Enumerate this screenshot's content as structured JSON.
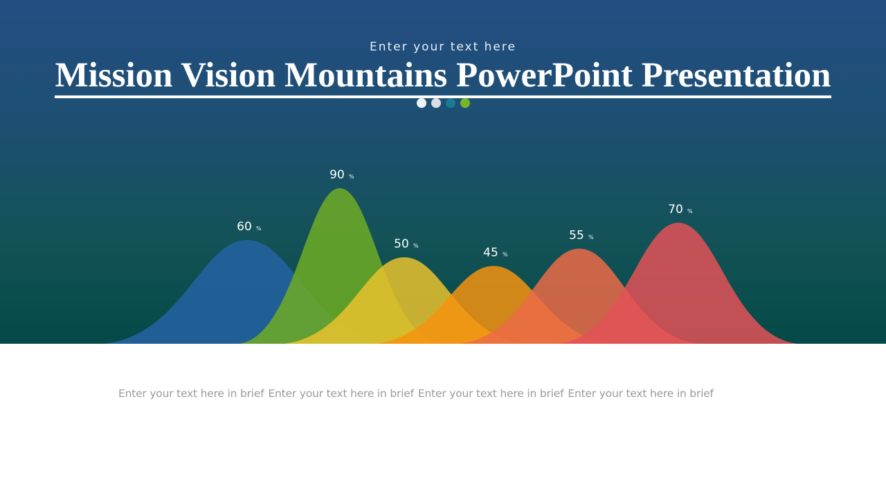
{
  "header": {
    "subtitle": "Enter your text here",
    "title": "Mission Vision Mountains PowerPoint Presentation"
  },
  "indicator_dots": [
    {
      "color": "#eef2f7"
    },
    {
      "color": "#dcdde3"
    },
    {
      "color": "#1a7b93"
    },
    {
      "color": "#76b72a"
    }
  ],
  "chart_data": {
    "type": "area",
    "unit": "%",
    "series": [
      {
        "value": 60,
        "label": "60",
        "color": "#2563a2"
      },
      {
        "value": 90,
        "label": "90",
        "color": "#6fab24"
      },
      {
        "value": 50,
        "label": "50",
        "color": "#e9c22d"
      },
      {
        "value": 45,
        "label": "45",
        "color": "#f5930f"
      },
      {
        "value": 55,
        "label": "55",
        "color": "#ec6b46"
      },
      {
        "value": 70,
        "label": "70",
        "color": "#e35157"
      }
    ]
  },
  "captions": [
    "Enter your text here in brief",
    "Enter your text here in brief",
    "Enter your text here in brief",
    "Enter your text here in brief"
  ]
}
